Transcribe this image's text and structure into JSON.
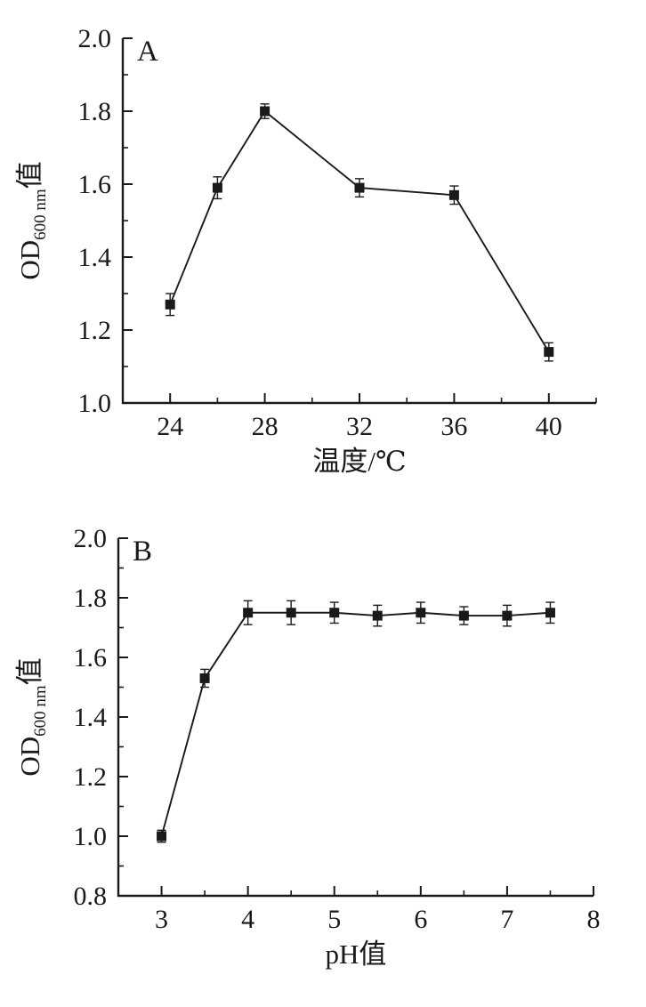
{
  "page": {
    "background": "#ffffff",
    "ink_color": "#1a1a1a",
    "description": "Two-panel scientific line charts of bacterial growth (OD600) versus temperature and pH"
  },
  "chart_data": [
    {
      "id": "temperature-growth-chart",
      "type": "line",
      "panel_label": "A",
      "title": "",
      "xlabel": "温度/℃",
      "ylabel": {
        "prefix": "OD",
        "subscript": "600 nm",
        "suffix": "值"
      },
      "x": [
        24,
        26,
        28,
        32,
        36,
        40
      ],
      "y": [
        1.27,
        1.59,
        1.8,
        1.59,
        1.57,
        1.14
      ],
      "yerr": [
        0.03,
        0.03,
        0.02,
        0.025,
        0.025,
        0.025
      ],
      "xlim": [
        22,
        42
      ],
      "ylim": [
        1.0,
        2.0
      ],
      "x_major_ticks": [
        24,
        28,
        32,
        36,
        40
      ],
      "x_minor_ticks": [
        22,
        26,
        30,
        34,
        38,
        42
      ],
      "y_major_ticks": [
        1.0,
        1.2,
        1.4,
        1.6,
        1.8,
        2.0
      ],
      "y_minor_ticks": [
        1.1,
        1.3,
        1.5,
        1.7,
        1.9
      ],
      "marker": "filled-square",
      "line_color": "#1a1a1a",
      "error_bars": true,
      "grid": false,
      "legend": null
    },
    {
      "id": "ph-growth-chart",
      "type": "line",
      "panel_label": "B",
      "title": "",
      "xlabel": "pH值",
      "ylabel": {
        "prefix": "OD",
        "subscript": "600 nm",
        "suffix": "值"
      },
      "x": [
        3,
        3.5,
        4,
        4.5,
        5,
        5.5,
        6,
        6.5,
        7,
        7.5
      ],
      "y": [
        1.0,
        1.53,
        1.75,
        1.75,
        1.75,
        1.74,
        1.75,
        1.74,
        1.74,
        1.75
      ],
      "yerr": [
        0.02,
        0.03,
        0.04,
        0.04,
        0.035,
        0.035,
        0.035,
        0.03,
        0.035,
        0.035
      ],
      "xlim": [
        2.5,
        8
      ],
      "ylim": [
        0.8,
        2.0
      ],
      "x_major_ticks": [
        3,
        4,
        5,
        6,
        7,
        8
      ],
      "x_minor_ticks": [
        3.5,
        4.5,
        5.5,
        6.5,
        7.5
      ],
      "y_major_ticks": [
        0.8,
        1.0,
        1.2,
        1.4,
        1.6,
        1.8,
        2.0
      ],
      "y_minor_ticks": [
        0.9,
        1.1,
        1.3,
        1.5,
        1.7,
        1.9
      ],
      "marker": "filled-square",
      "line_color": "#1a1a1a",
      "error_bars": true,
      "grid": false,
      "legend": null
    }
  ]
}
